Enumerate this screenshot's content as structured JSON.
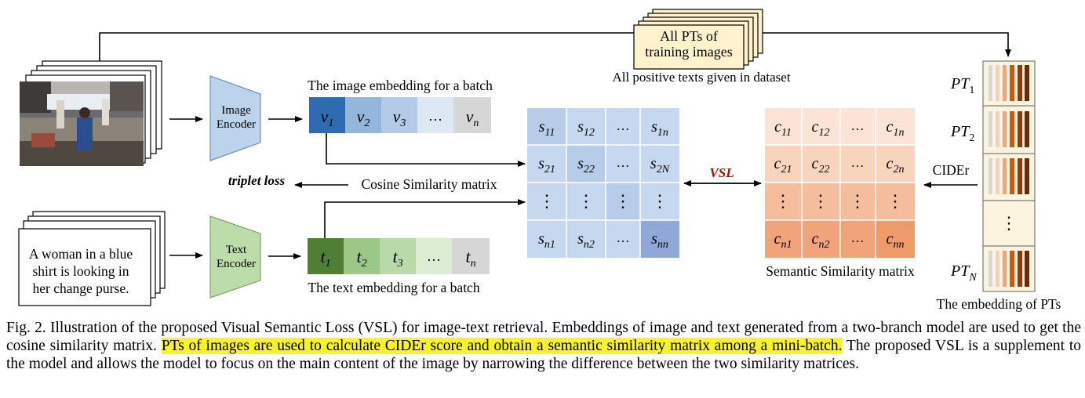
{
  "figure": {
    "pts_box": {
      "line1": "All PTs of",
      "line2": "training images"
    },
    "pts_caption": "All positive texts given in dataset",
    "image_encoder": {
      "line1": "Image",
      "line2": "Encoder"
    },
    "text_encoder": {
      "line1": "Text",
      "line2": "Encoder"
    },
    "image_embedding_label": "The image embedding for a batch",
    "text_embedding_label": "The text embedding for a batch",
    "image_embedding": [
      "v1",
      "v2",
      "v3",
      "...",
      "vn"
    ],
    "text_embedding": [
      "t1",
      "t2",
      "t3",
      "...",
      "tn"
    ],
    "caption_text": {
      "line1": "A woman in a blue",
      "line2": "shirt is looking in",
      "line3": "her change purse."
    },
    "triplet_loss": "triplet loss",
    "cosine_label": "Cosine Similarity matrix",
    "vsl_label": "VSL",
    "semantic_label": "Semantic Similarity matrix",
    "cider_label": "CIDEr",
    "pt_labels": [
      "PT1",
      "PT2",
      "PTN"
    ],
    "pt_embedding_label": "The embedding of PTs",
    "cosine_matrix": [
      [
        "s11",
        "s12",
        "...",
        "s1n"
      ],
      [
        "s21",
        "s22",
        "...",
        "s2N"
      ],
      [
        "⋮",
        "⋮",
        "⋮",
        "⋮"
      ],
      [
        "sn1",
        "sn2",
        "...",
        "snn"
      ]
    ],
    "semantic_matrix": [
      [
        "c11",
        "c12",
        "...",
        "c1n"
      ],
      [
        "c21",
        "c22",
        "...",
        "c2n"
      ],
      [
        "⋮",
        "⋮",
        "⋮",
        "⋮"
      ],
      [
        "cn1",
        "cn2",
        "...",
        "cnn"
      ]
    ]
  },
  "caption": {
    "prefix": "Fig. 2.  Illustration of the proposed Visual Semantic Loss (VSL) for image-text retrieval. Embeddings of image and text generated from a two-branch model are used to get the cosine similarity matrix. ",
    "highlight": "PTs of images are used to calculate CIDEr score and obtain a semantic similarity matrix among a mini-batch.",
    "suffix": " The proposed VSL is a supplement to the model and allows the model to focus on the main content of the image by narrowing the difference between the two similarity matrices."
  },
  "colors": {
    "highlight": "#fbf32a",
    "image_encoder": "#bcd3ec",
    "text_encoder": "#bcdcaa",
    "vsl": "#c00000",
    "pts_box": "#fff2cc"
  }
}
